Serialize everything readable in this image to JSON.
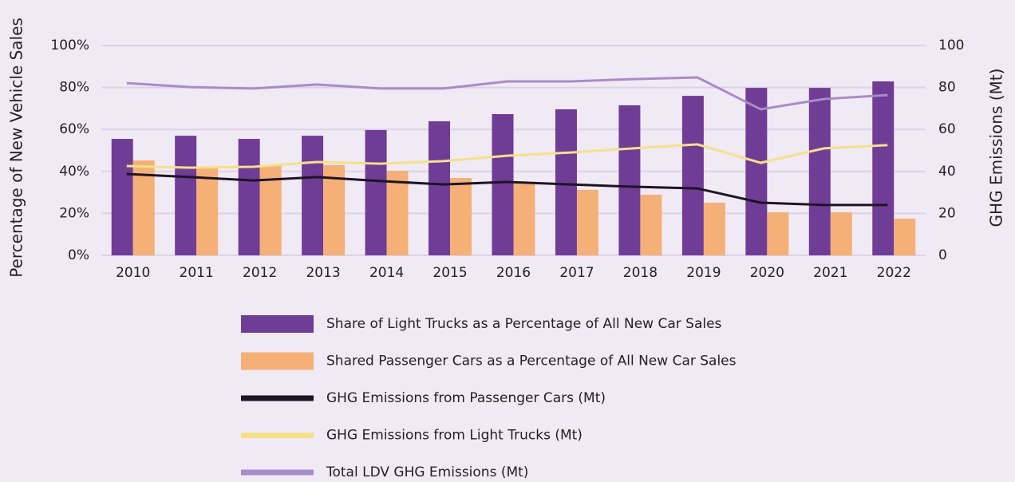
{
  "chart_data": {
    "type": "bar",
    "categories": [
      "2010",
      "2011",
      "2012",
      "2013",
      "2014",
      "2015",
      "2016",
      "2017",
      "2018",
      "2019",
      "2020",
      "2021",
      "2022"
    ],
    "ylabel": "Percentage of New Vehicle Sales",
    "y2label": "GHG Emissions (Mt)",
    "ylim": [
      0,
      100
    ],
    "yticks": [
      {
        "value": 0,
        "label": "0%"
      },
      {
        "value": 20,
        "label": "20%"
      },
      {
        "value": 40,
        "label": "40%"
      },
      {
        "value": 60,
        "label": "60%"
      },
      {
        "value": 80,
        "label": "80%"
      },
      {
        "value": 100,
        "label": "100%"
      }
    ],
    "y2lim": [
      0,
      100
    ],
    "y2ticks": [
      0,
      20,
      40,
      60,
      80,
      100
    ],
    "grid": true,
    "series": [
      {
        "name": "Share of Light Trucks as a Percentage of All New Car Sales",
        "type": "bar",
        "color": "#6f3c96",
        "values": [
          55.5,
          57,
          55.5,
          57,
          59.7,
          63.9,
          67.3,
          69.6,
          71.5,
          76,
          79.8,
          79.8,
          82.9
        ]
      },
      {
        "name": "Shared Passenger Cars as a Percentage of All New Car Sales",
        "type": "bar",
        "color": "#f5b077",
        "values": [
          45.2,
          42.2,
          43,
          43,
          40.3,
          36.9,
          34.2,
          31.2,
          28.9,
          25.1,
          20.5,
          20.5,
          17.5
        ]
      },
      {
        "name": "GHG Emissions from Passenger Cars (Mt)",
        "type": "line",
        "axis": "y2",
        "color": "#1e1423",
        "values": [
          38.8,
          37.3,
          35.7,
          37.3,
          35.4,
          33.8,
          35,
          33.8,
          32.7,
          31.9,
          25.1,
          24,
          24
        ]
      },
      {
        "name": "GHG Emissions from Light Trucks (Mt)",
        "type": "line",
        "axis": "y2",
        "color": "#f5e08a",
        "values": [
          42.6,
          41.8,
          42.2,
          44.5,
          43.7,
          44.9,
          47.5,
          49,
          51,
          52.9,
          44.1,
          51,
          52.5
        ]
      },
      {
        "name": "Total LDV GHG Emissions (Mt)",
        "type": "line",
        "axis": "y2",
        "color": "#a88cc8",
        "values": [
          82.1,
          80.2,
          79.5,
          81.4,
          79.5,
          79.5,
          82.9,
          82.9,
          84,
          84.8,
          69.6,
          74.5,
          76.4
        ]
      }
    ]
  }
}
